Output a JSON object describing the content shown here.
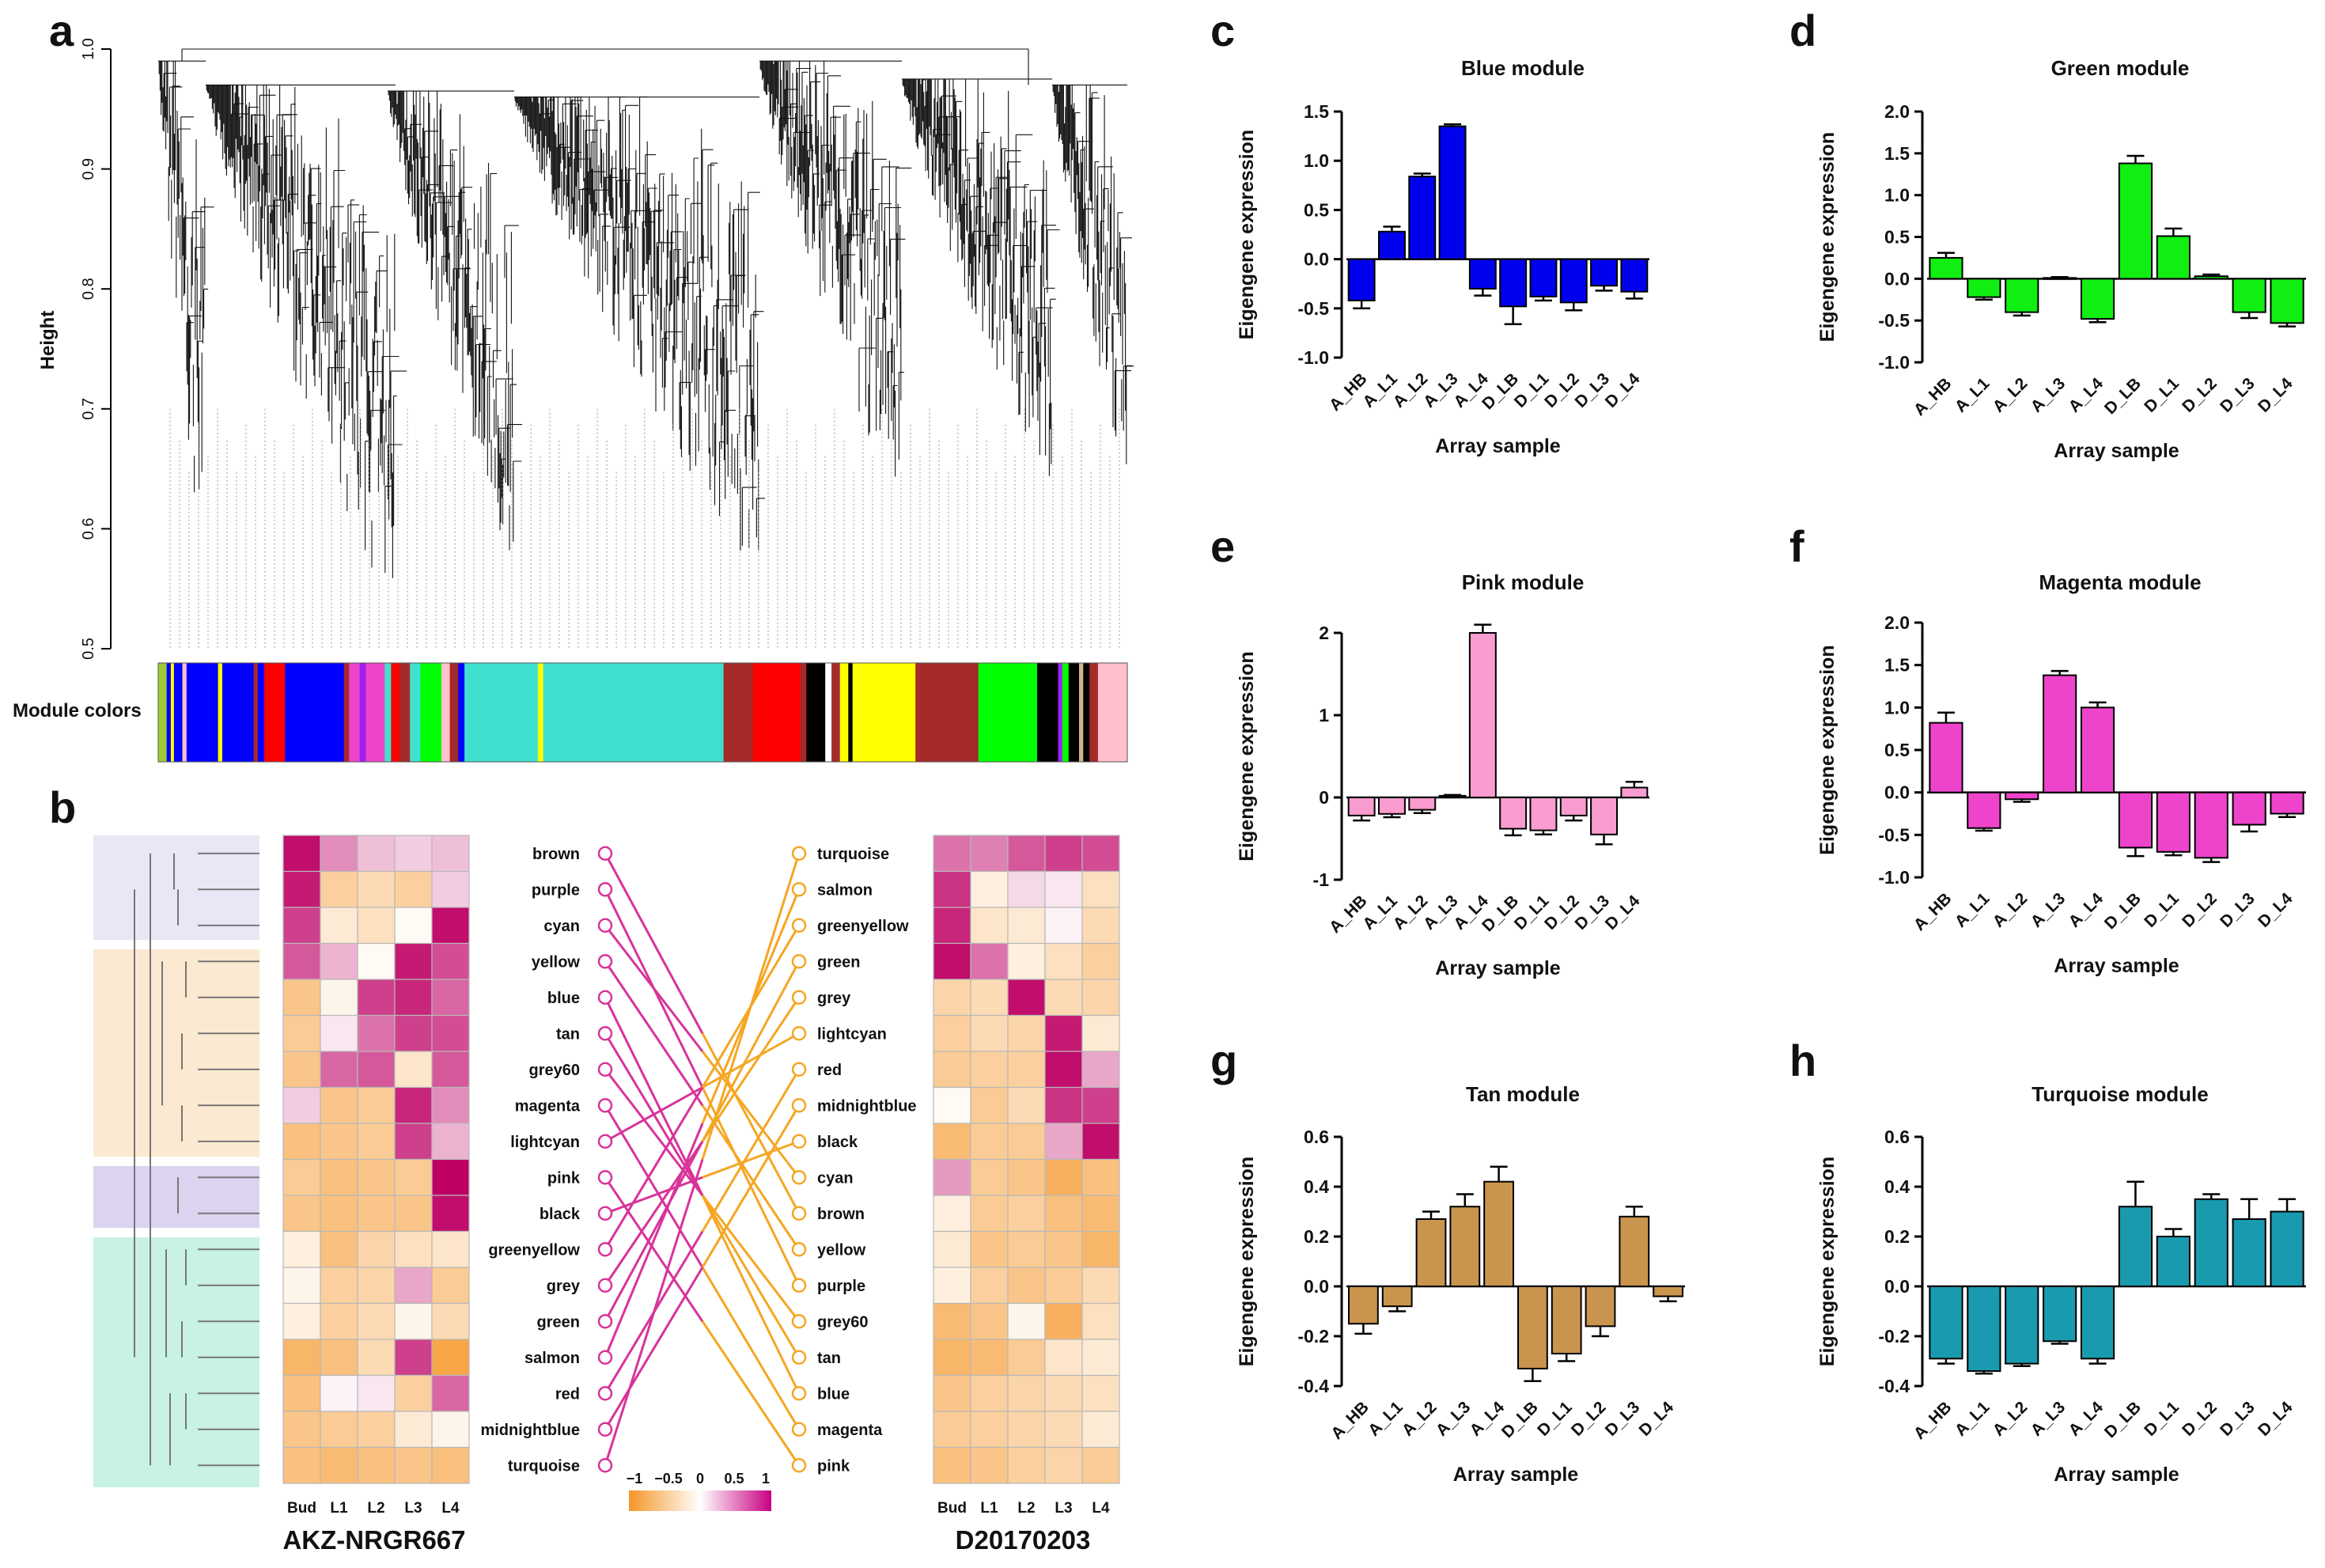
{
  "panels": {
    "a": {
      "letter": "a",
      "ylabel": "Height",
      "yticks": [
        "0.5",
        "0.6",
        "0.7",
        "0.8",
        "0.9",
        "1.0"
      ],
      "ytick_values": [
        0.5,
        0.6,
        0.7,
        0.8,
        0.9,
        1.0
      ],
      "module_colors_label": "Module colors"
    },
    "b": {
      "letter": "b",
      "left_title": "AKZ-NRGR667",
      "right_title": "D20170203",
      "columns": [
        "Bud",
        "L1",
        "L2",
        "L3",
        "L4"
      ],
      "left_modules": [
        "brown",
        "purple",
        "cyan",
        "yellow",
        "blue",
        "tan",
        "grey60",
        "magenta",
        "lightcyan",
        "pink",
        "black",
        "greenyellow",
        "grey",
        "green",
        "salmon",
        "red",
        "midnightblue",
        "turquoise"
      ],
      "right_modules": [
        "turquoise",
        "salmon",
        "greenyellow",
        "green",
        "grey",
        "lightcyan",
        "red",
        "midnightblue",
        "black",
        "cyan",
        "brown",
        "yellow",
        "purple",
        "grey60",
        "tan",
        "blue",
        "magenta",
        "pink"
      ],
      "legend_ticks": [
        "−1",
        "−0.5",
        "0",
        "0.5",
        "1"
      ],
      "left_heat": [
        [
          0.95,
          0.45,
          0.25,
          0.2,
          0.25
        ],
        [
          0.9,
          -0.45,
          -0.35,
          -0.45,
          0.2
        ],
        [
          0.75,
          -0.2,
          -0.3,
          -0.05,
          0.95
        ],
        [
          0.65,
          0.3,
          -0.05,
          0.9,
          0.7
        ],
        [
          -0.55,
          -0.1,
          0.75,
          0.85,
          0.6
        ],
        [
          -0.5,
          0.1,
          0.55,
          0.75,
          0.7
        ],
        [
          -0.55,
          0.6,
          0.65,
          -0.25,
          0.65
        ],
        [
          0.2,
          -0.55,
          -0.5,
          0.85,
          0.45
        ],
        [
          -0.6,
          -0.55,
          -0.5,
          0.75,
          0.3
        ],
        [
          -0.5,
          -0.6,
          -0.55,
          -0.5,
          1.0
        ],
        [
          -0.55,
          -0.6,
          -0.55,
          -0.55,
          0.95
        ],
        [
          -0.15,
          -0.6,
          -0.4,
          -0.3,
          -0.25
        ],
        [
          -0.1,
          -0.45,
          -0.4,
          0.35,
          -0.5
        ],
        [
          -0.15,
          -0.45,
          -0.35,
          -0.1,
          -0.35
        ],
        [
          -0.7,
          -0.6,
          -0.35,
          0.75,
          -0.85
        ],
        [
          -0.6,
          0.05,
          0.1,
          -0.45,
          0.6
        ],
        [
          -0.55,
          -0.5,
          -0.45,
          -0.2,
          -0.1
        ],
        [
          -0.6,
          -0.65,
          -0.6,
          -0.55,
          -0.6
        ]
      ],
      "right_heat": [
        [
          0.55,
          0.5,
          0.65,
          0.75,
          0.7
        ],
        [
          0.8,
          -0.15,
          0.15,
          0.1,
          -0.3
        ],
        [
          0.85,
          -0.25,
          -0.2,
          0.05,
          -0.35
        ],
        [
          0.95,
          0.55,
          -0.15,
          -0.3,
          -0.45
        ],
        [
          -0.4,
          -0.35,
          0.95,
          -0.35,
          -0.4
        ],
        [
          -0.45,
          -0.35,
          -0.4,
          0.9,
          -0.2
        ],
        [
          -0.5,
          -0.45,
          -0.45,
          0.95,
          0.35
        ],
        [
          -0.05,
          -0.5,
          -0.35,
          0.8,
          0.75
        ],
        [
          -0.65,
          -0.5,
          -0.5,
          0.35,
          0.95
        ],
        [
          0.4,
          -0.5,
          -0.55,
          -0.75,
          -0.6
        ],
        [
          -0.15,
          -0.5,
          -0.45,
          -0.6,
          -0.65
        ],
        [
          -0.2,
          -0.55,
          -0.5,
          -0.55,
          -0.7
        ],
        [
          -0.15,
          -0.45,
          -0.55,
          -0.5,
          -0.35
        ],
        [
          -0.65,
          -0.55,
          -0.1,
          -0.75,
          -0.3
        ],
        [
          -0.7,
          -0.65,
          -0.5,
          -0.25,
          -0.2
        ],
        [
          -0.55,
          -0.45,
          -0.4,
          -0.35,
          -0.3
        ],
        [
          -0.5,
          -0.45,
          -0.4,
          -0.35,
          -0.2
        ],
        [
          -0.6,
          -0.55,
          -0.45,
          -0.4,
          -0.5
        ]
      ],
      "left_line_color": "#d8339a",
      "right_line_color": "#f5a623"
    },
    "c": {
      "letter": "c",
      "title": "Blue module",
      "color": "#0000ee"
    },
    "d": {
      "letter": "d",
      "title": "Green module",
      "color": "#11ee11"
    },
    "e": {
      "letter": "e",
      "title": "Pink module",
      "color": "#f99ccf"
    },
    "f": {
      "letter": "f",
      "title": "Magenta module",
      "color": "#ee44cc"
    },
    "g": {
      "letter": "g",
      "title": "Tan module",
      "color": "#c9944e"
    },
    "h": {
      "letter": "h",
      "title": "Turquoise module",
      "color": "#1a9aae"
    }
  },
  "bar_common": {
    "ylabel": "Eigengene expression",
    "xlabel": "Array sample"
  },
  "chart_data": [
    {
      "panel": "c",
      "type": "bar",
      "title": "Blue module",
      "xlabel": "Array sample",
      "ylabel": "Eigengene expression",
      "categories": [
        "A_HB",
        "A_L1",
        "A_L2",
        "A_L3",
        "A_L4",
        "D_LB",
        "D_L1",
        "D_L2",
        "D_L3",
        "D_L4"
      ],
      "values": [
        -0.42,
        0.28,
        0.84,
        1.35,
        -0.3,
        -0.48,
        -0.38,
        -0.44,
        -0.27,
        -0.33
      ],
      "errors": [
        0.08,
        0.05,
        0.03,
        0.02,
        0.07,
        0.18,
        0.04,
        0.08,
        0.05,
        0.07
      ],
      "ylim": [
        -1.0,
        1.5
      ],
      "yticks": [
        -1.0,
        -0.5,
        0.0,
        0.5,
        1.0,
        1.5
      ]
    },
    {
      "panel": "d",
      "type": "bar",
      "title": "Green module",
      "xlabel": "Array sample",
      "ylabel": "Eigengene expression",
      "categories": [
        "A_HB",
        "A_L1",
        "A_L2",
        "A_L3",
        "A_L4",
        "D_LB",
        "D_L1",
        "D_L2",
        "D_L3",
        "D_L4"
      ],
      "values": [
        0.25,
        -0.22,
        -0.4,
        0.01,
        -0.48,
        1.38,
        0.51,
        0.03,
        -0.4,
        -0.53
      ],
      "errors": [
        0.06,
        0.03,
        0.04,
        0.01,
        0.04,
        0.09,
        0.09,
        0.02,
        0.07,
        0.04
      ],
      "ylim": [
        -1.0,
        2.0
      ],
      "yticks": [
        -1.0,
        -0.5,
        0.0,
        0.5,
        1.0,
        1.5,
        2.0
      ]
    },
    {
      "panel": "e",
      "type": "bar",
      "title": "Pink module",
      "xlabel": "Array sample",
      "ylabel": "Eigengene expression",
      "categories": [
        "A_HB",
        "A_L1",
        "A_L2",
        "A_L3",
        "A_L4",
        "D_LB",
        "D_L1",
        "D_L2",
        "D_L3",
        "D_L4"
      ],
      "values": [
        -0.22,
        -0.2,
        -0.15,
        0.02,
        2.0,
        -0.38,
        -0.4,
        -0.22,
        -0.45,
        0.12
      ],
      "errors": [
        0.06,
        0.04,
        0.04,
        0.01,
        0.1,
        0.08,
        0.05,
        0.06,
        0.12,
        0.07
      ],
      "ylim": [
        -1.0,
        2.0
      ],
      "yticks": [
        -1,
        0,
        1,
        2
      ]
    },
    {
      "panel": "f",
      "type": "bar",
      "title": "Magenta module",
      "xlabel": "Array sample",
      "ylabel": "Eigengene expression",
      "categories": [
        "A_HB",
        "A_L1",
        "A_L2",
        "A_L3",
        "A_L4",
        "D_LB",
        "D_L1",
        "D_L2",
        "D_L3",
        "D_L4"
      ],
      "values": [
        0.82,
        -0.42,
        -0.08,
        1.38,
        1.0,
        -0.65,
        -0.7,
        -0.77,
        -0.38,
        -0.25
      ],
      "errors": [
        0.12,
        0.03,
        0.03,
        0.05,
        0.06,
        0.1,
        0.04,
        0.05,
        0.08,
        0.04
      ],
      "ylim": [
        -1.0,
        2.0
      ],
      "yticks": [
        -1.0,
        -0.5,
        0.0,
        0.5,
        1.0,
        1.5,
        2.0
      ]
    },
    {
      "panel": "g",
      "type": "bar",
      "title": "Tan module",
      "xlabel": "Array sample",
      "ylabel": "Eigengene expression",
      "categories": [
        "A_HB",
        "A_L1",
        "A_L2",
        "A_L3",
        "A_L4",
        "D_LB",
        "D_L1",
        "D_L2",
        "D_L3",
        "D_L4"
      ],
      "values": [
        -0.15,
        -0.08,
        0.27,
        0.32,
        0.42,
        -0.33,
        -0.27,
        -0.16,
        0.28,
        -0.04
      ],
      "errors": [
        0.04,
        0.02,
        0.03,
        0.05,
        0.06,
        0.05,
        0.03,
        0.04,
        0.04,
        0.02
      ],
      "ylim": [
        -0.4,
        0.6
      ],
      "yticks": [
        -0.4,
        -0.2,
        0.0,
        0.2,
        0.4,
        0.6
      ]
    },
    {
      "panel": "h",
      "type": "bar",
      "title": "Turquoise module",
      "xlabel": "Array sample",
      "ylabel": "Eigengene expression",
      "categories": [
        "A_HB",
        "A_L1",
        "A_L2",
        "A_L3",
        "A_L4",
        "D_LB",
        "D_L1",
        "D_L2",
        "D_L3",
        "D_L4"
      ],
      "values": [
        -0.29,
        -0.34,
        -0.31,
        -0.22,
        -0.29,
        0.32,
        0.2,
        0.35,
        0.27,
        0.3
      ],
      "errors": [
        0.02,
        0.01,
        0.01,
        0.01,
        0.02,
        0.1,
        0.03,
        0.02,
        0.08,
        0.05
      ],
      "ylim": [
        -0.4,
        0.6
      ],
      "yticks": [
        -0.4,
        -0.2,
        0.0,
        0.2,
        0.4,
        0.6
      ]
    }
  ]
}
